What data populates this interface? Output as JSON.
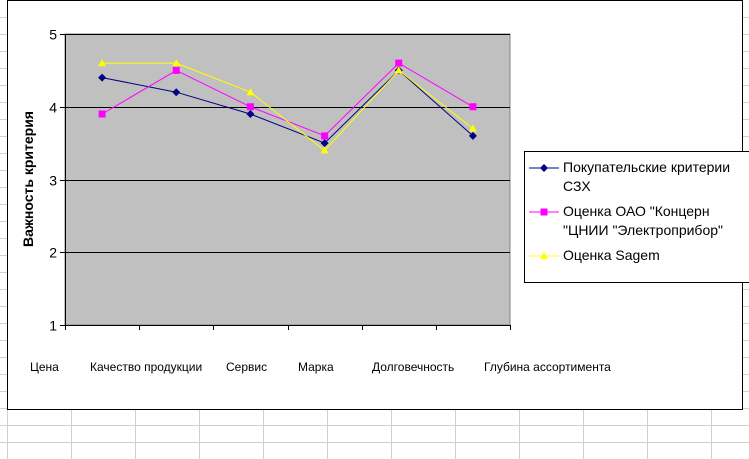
{
  "colors": {
    "plot_background": "#c0c0c0",
    "gridline": "#000000",
    "series_1": "#000080",
    "series_2": "#ff00ff",
    "series_3": "#ffff00"
  },
  "chart_data": {
    "type": "line",
    "title": "",
    "xlabel": "",
    "ylabel": "Важность критерия",
    "ylim": [
      1,
      5
    ],
    "yticks": [
      "1",
      "2",
      "3",
      "4",
      "5"
    ],
    "grid": true,
    "legend_position": "right",
    "categories": [
      "Цена",
      "Качество продукции",
      "Сервис",
      "Марка",
      "Долговечность",
      "Глубина ассортимента"
    ],
    "series": [
      {
        "name": "Покупательские критерии\nСЗХ",
        "marker": "diamond",
        "color": "#000080",
        "values": [
          4.4,
          4.2,
          3.9,
          3.5,
          4.5,
          3.6
        ]
      },
      {
        "name": "Оценка ОАО \"Концерн\n\"ЦНИИ \"Электроприбор\"",
        "marker": "square",
        "color": "#ff00ff",
        "values": [
          3.9,
          4.5,
          4.0,
          3.6,
          4.6,
          4.0
        ]
      },
      {
        "name": "Оценка Sagem",
        "marker": "triangle",
        "color": "#ffff00",
        "values": [
          4.6,
          4.6,
          4.2,
          3.4,
          4.5,
          3.7
        ]
      }
    ]
  }
}
